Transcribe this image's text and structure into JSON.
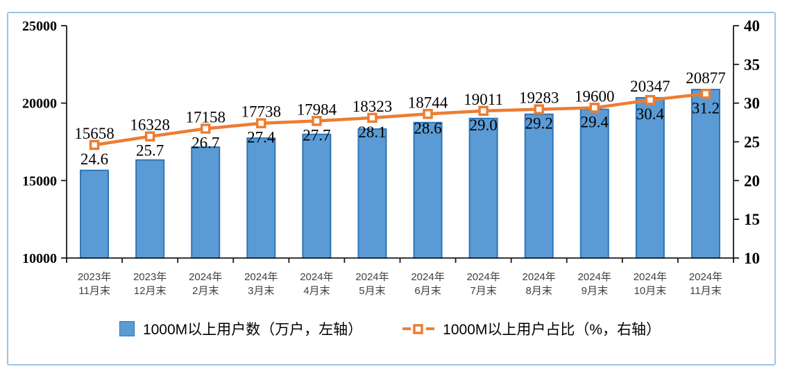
{
  "chart_data": {
    "type": "combo",
    "categories": [
      [
        "2023年",
        "11月末"
      ],
      [
        "2023年",
        "12月末"
      ],
      [
        "2024年",
        "2月末"
      ],
      [
        "2024年",
        "3月末"
      ],
      [
        "2024年",
        "4月末"
      ],
      [
        "2024年",
        "5月末"
      ],
      [
        "2024年",
        "6月末"
      ],
      [
        "2024年",
        "7月末"
      ],
      [
        "2024年",
        "8月末"
      ],
      [
        "2024年",
        "9月末"
      ],
      [
        "2024年",
        "10月末"
      ],
      [
        "2024年",
        "11月末"
      ]
    ],
    "series": [
      {
        "name": "1000M以上用户数（万户，左轴）",
        "type": "bar",
        "axis": "left",
        "values": [
          15658,
          16328,
          17158,
          17738,
          17984,
          18323,
          18744,
          19011,
          19283,
          19600,
          20347,
          20877
        ]
      },
      {
        "name": "1000M以上用户占比（%，右轴）",
        "type": "line",
        "axis": "right",
        "values": [
          24.6,
          25.7,
          26.7,
          27.4,
          27.7,
          28.1,
          28.6,
          29.0,
          29.2,
          29.4,
          30.4,
          31.2
        ]
      }
    ],
    "left_axis": {
      "min": 10000,
      "max": 25000,
      "ticks": [
        10000,
        15000,
        20000,
        25000
      ]
    },
    "right_axis": {
      "min": 10,
      "max": 40,
      "ticks": [
        10,
        15,
        20,
        25,
        30,
        35,
        40
      ]
    },
    "grid": false,
    "legend_position": "bottom",
    "title": ""
  },
  "colors": {
    "bar_fill": "#5B9BD5",
    "bar_border": "#2E75B6",
    "line": "#ED7D31",
    "marker_fill": "#FFFFFF",
    "axis": "#1a1a1a",
    "frame_border": "#9DC3E6"
  }
}
